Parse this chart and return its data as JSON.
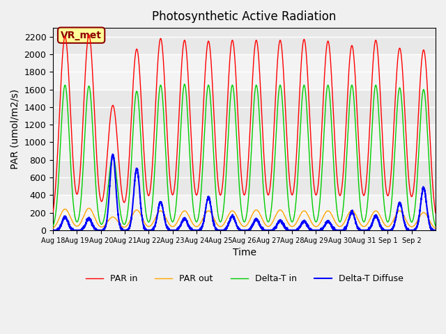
{
  "title": "Photosynthetic Active Radiation",
  "ylabel": "PAR (umol/m2/s)",
  "xlabel": "Time",
  "annotation": "VR_met",
  "ylim": [
    0,
    2300
  ],
  "series_colors": {
    "PAR in": "#ff0000",
    "PAR out": "#ffa500",
    "Delta-T in": "#00cc00",
    "Delta-T Diffuse": "#0000ff"
  },
  "bg_color": "#f0f0f0",
  "plot_bg": "#e8e8e8",
  "grid_color": "#ffffff",
  "xtick_labels": [
    "Aug 18",
    "Aug 19",
    "Aug 20",
    "Aug 21",
    "Aug 22",
    "Aug 23",
    "Aug 24",
    "Aug 25",
    "Aug 26",
    "Aug 27",
    "Aug 28",
    "Aug 29",
    "Aug 30",
    "Aug 31",
    "Sep 1",
    "Sep 2"
  ],
  "peak_PAR_in": [
    2200,
    2220,
    1420,
    2060,
    2180,
    2160,
    2150,
    2160,
    2160,
    2160,
    2170,
    2150,
    2100,
    2160,
    2070,
    2050
  ],
  "peak_PAR_out": [
    240,
    250,
    150,
    230,
    220,
    220,
    220,
    220,
    230,
    230,
    220,
    220,
    225,
    220,
    220,
    200
  ],
  "peak_delta_T": [
    1650,
    1640,
    850,
    1580,
    1650,
    1660,
    1650,
    1650,
    1650,
    1650,
    1650,
    1650,
    1650,
    1650,
    1620,
    1600
  ],
  "peak_diffuse": [
    150,
    130,
    860,
    700,
    320,
    130,
    370,
    160,
    120,
    110,
    100,
    100,
    210,
    160,
    310,
    480
  ]
}
